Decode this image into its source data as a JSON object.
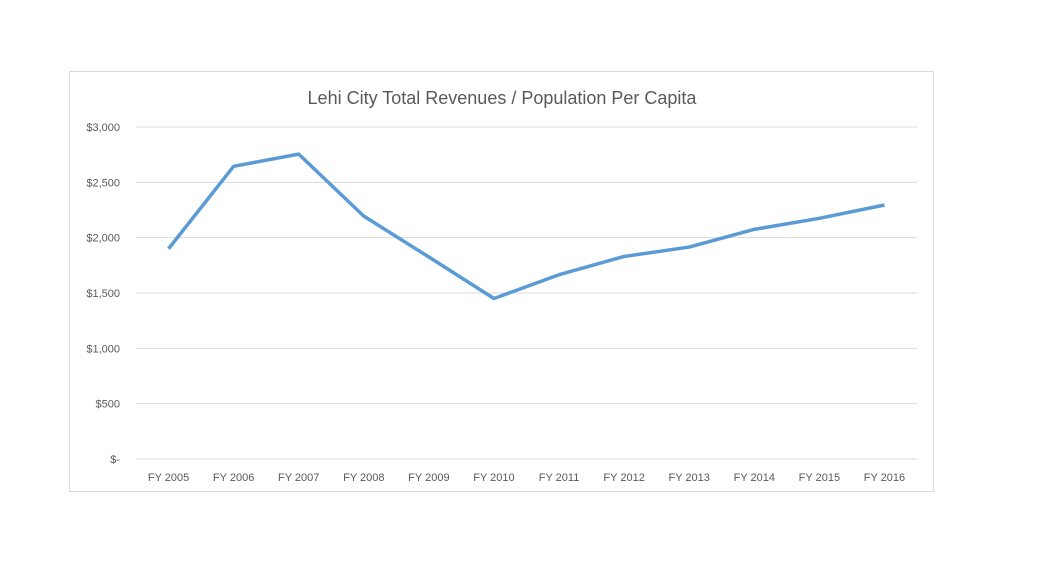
{
  "chart_data": {
    "type": "line",
    "title": "Lehi City Total Revenues / Population Per Capita",
    "xlabel": "",
    "ylabel": "",
    "categories": [
      "FY 2005",
      "FY 2006",
      "FY 2007",
      "FY 2008",
      "FY 2009",
      "FY 2010",
      "FY 2011",
      "FY 2012",
      "FY 2013",
      "FY 2014",
      "FY 2015",
      "FY 2016"
    ],
    "series": [
      {
        "values": [
          1900,
          2645,
          2755,
          2195,
          1825,
          1450,
          1665,
          1830,
          1915,
          2075,
          2175,
          2295
        ],
        "color": "#5b9bd5"
      }
    ],
    "ylim": [
      0,
      3000
    ],
    "yticks": [
      0,
      500,
      1000,
      1500,
      2000,
      2500,
      3000
    ],
    "ytick_labels": [
      "$-",
      "$500",
      "$1,000",
      "$1,500",
      "$2,000",
      "$2,500",
      "$3,000"
    ],
    "grid": true,
    "legend": "none"
  }
}
